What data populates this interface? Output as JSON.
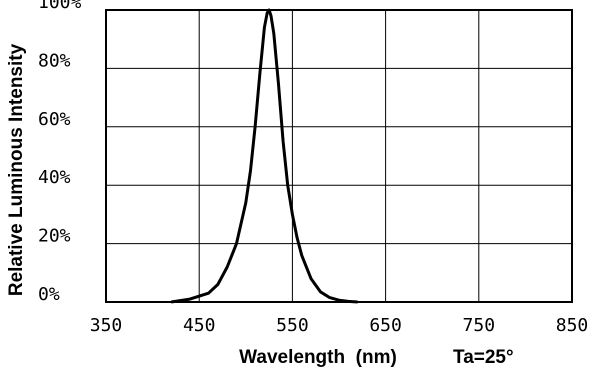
{
  "chart_data": {
    "type": "line",
    "title": "",
    "xlabel": "Wavelength  (nm)",
    "ylabel": "Relative Luminous Intensity",
    "annotation": "Ta=25°",
    "xlim": [
      350,
      850
    ],
    "ylim": [
      0,
      100
    ],
    "xticks": [
      "350",
      "450",
      "550",
      "650",
      "750",
      "850"
    ],
    "yticks": [
      "0%",
      "20%",
      "40%",
      "60%",
      "80%",
      "100%"
    ],
    "grid": true,
    "legend": "none",
    "line_color": "#000000",
    "series": [
      {
        "x": [
          420,
          440,
          460,
          470,
          480,
          490,
          500,
          505,
          510,
          515,
          520,
          523,
          525,
          527,
          530,
          535,
          540,
          545,
          550,
          555,
          560,
          570,
          580,
          590,
          600,
          610,
          620
        ],
        "y": [
          0,
          1,
          3,
          6,
          12,
          20,
          34,
          45,
          60,
          78,
          94,
          99,
          100,
          98,
          92,
          75,
          55,
          40,
          30,
          22,
          16,
          8,
          3.5,
          1.5,
          0.6,
          0.2,
          0
        ]
      }
    ]
  }
}
